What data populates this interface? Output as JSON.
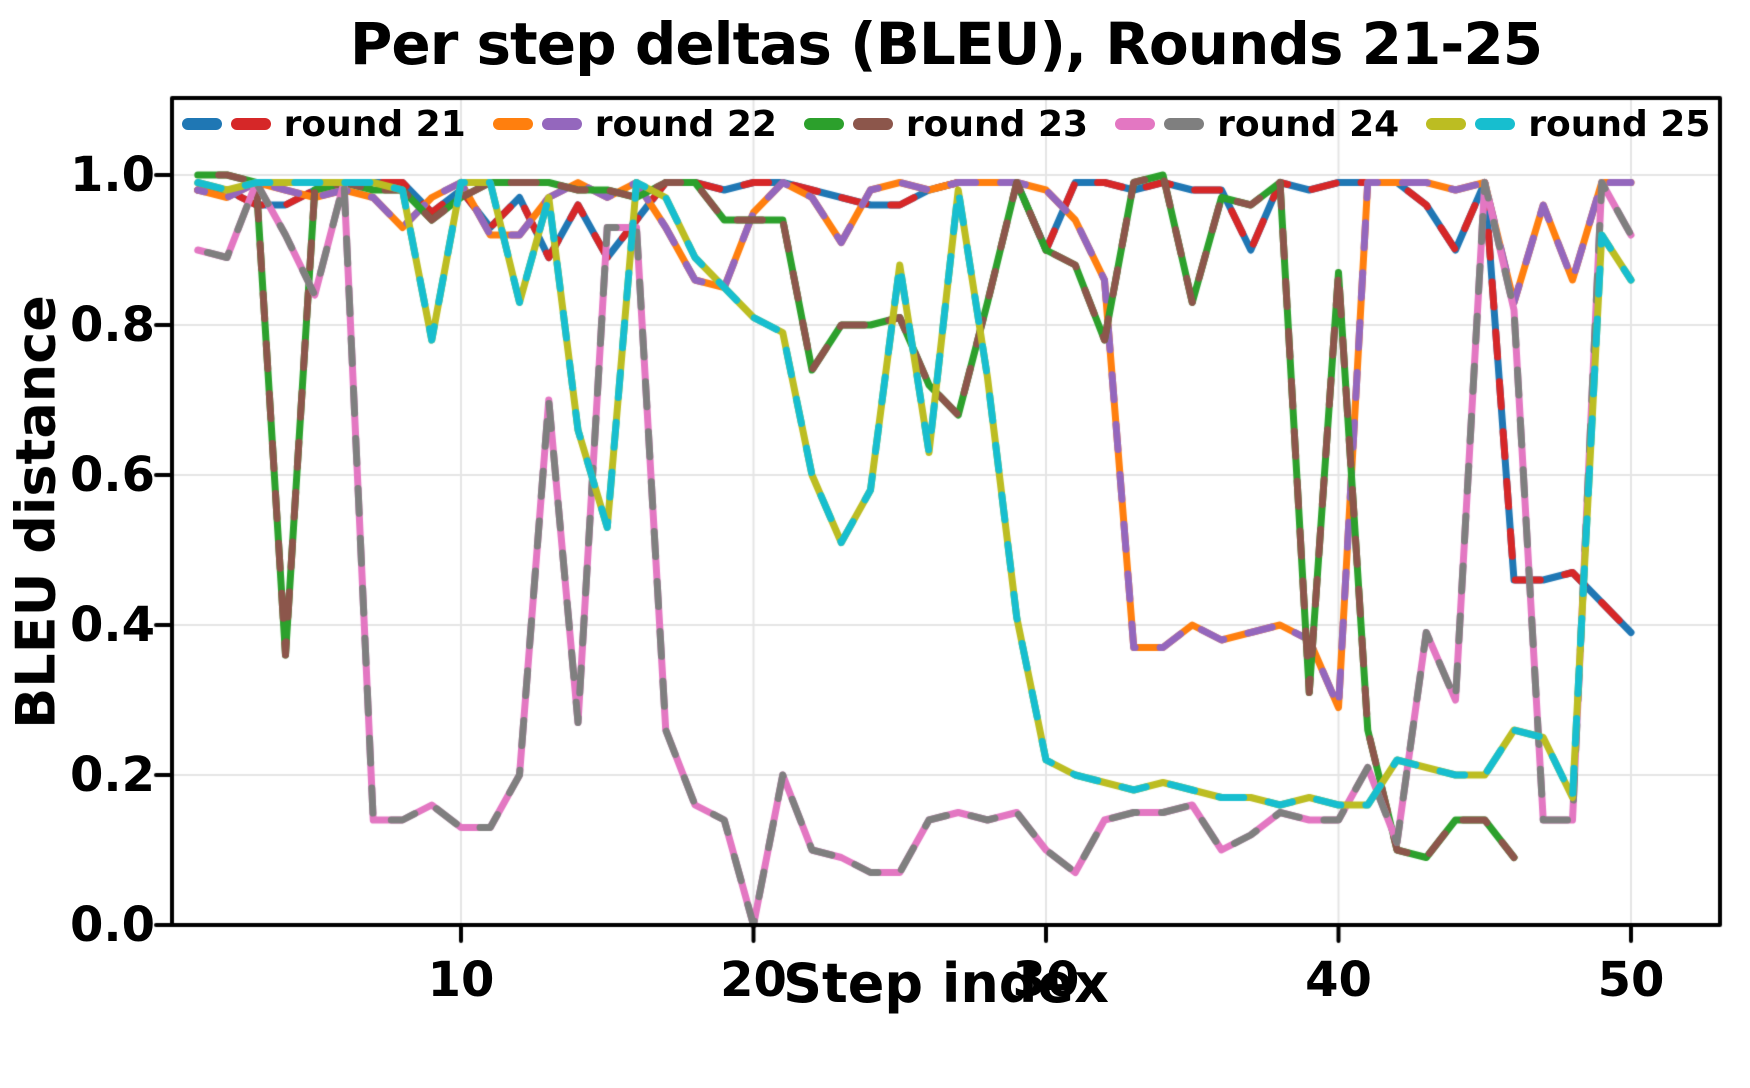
{
  "title": "Per step deltas (BLEU), Rounds 21-25",
  "chart_data": {
    "type": "line",
    "title": "Per step deltas (BLEU), Rounds 21-25",
    "xlabel": "Step index",
    "ylabel": "BLEU distance",
    "x_tick_values": [
      10,
      20,
      30,
      40,
      50
    ],
    "x_tick_labels": [
      "10",
      "20",
      "30",
      "40",
      "50"
    ],
    "y_tick_values": [
      0.0,
      0.2,
      0.4,
      0.6,
      0.8,
      1.0
    ],
    "y_tick_labels": [
      "0.0",
      "0.2",
      "0.4",
      "0.6",
      "0.8",
      "1.0"
    ],
    "x_start_step": 1,
    "ylim": [
      0.0,
      1.1
    ],
    "grid": true,
    "legend_position": "top-center-inside",
    "axis_color": "#000000",
    "grid_color": "#e5e5e5",
    "series": [
      {
        "name": "round 21",
        "colors": [
          "#1f77b4",
          "#d62728"
        ],
        "values": [
          0.98,
          0.98,
          0.96,
          0.96,
          0.98,
          0.99,
          0.99,
          0.99,
          0.95,
          0.98,
          0.93,
          0.97,
          0.89,
          0.96,
          0.89,
          0.94,
          0.99,
          0.99,
          0.98,
          0.99,
          0.99,
          0.98,
          0.97,
          0.96,
          0.96,
          0.98,
          0.99,
          0.99,
          0.99,
          0.9,
          0.99,
          0.99,
          0.98,
          0.99,
          0.98,
          0.98,
          0.9,
          0.99,
          0.98,
          0.99,
          0.99,
          0.99,
          0.96,
          0.9,
          0.99,
          0.46,
          0.46,
          0.47,
          0.43,
          0.39
        ]
      },
      {
        "name": "round 22",
        "colors": [
          "#ff7f0e",
          "#9467bd"
        ],
        "values": [
          0.98,
          0.97,
          0.99,
          0.98,
          0.97,
          0.98,
          0.97,
          0.93,
          0.97,
          0.99,
          0.92,
          0.92,
          0.97,
          0.99,
          0.97,
          0.99,
          0.93,
          0.86,
          0.85,
          0.95,
          0.99,
          0.97,
          0.91,
          0.98,
          0.99,
          0.98,
          0.99,
          0.99,
          0.99,
          0.98,
          0.94,
          0.86,
          0.37,
          0.37,
          0.4,
          0.38,
          0.39,
          0.4,
          0.38,
          0.29,
          0.99,
          0.99,
          0.99,
          0.98,
          0.99,
          0.83,
          0.96,
          0.86,
          0.99,
          0.99
        ]
      },
      {
        "name": "round 23",
        "colors": [
          "#2ca02c",
          "#8c564b"
        ],
        "values": [
          1.0,
          1.0,
          0.99,
          0.36,
          0.98,
          0.99,
          0.98,
          0.98,
          0.94,
          0.97,
          0.99,
          0.99,
          0.99,
          0.98,
          0.98,
          0.97,
          0.99,
          0.99,
          0.94,
          0.94,
          0.94,
          0.74,
          0.8,
          0.8,
          0.81,
          0.72,
          0.68,
          0.83,
          0.99,
          0.9,
          0.88,
          0.78,
          0.99,
          1.0,
          0.83,
          0.97,
          0.96,
          0.99,
          0.31,
          0.87,
          0.26,
          0.1,
          0.09,
          0.14,
          0.14,
          0.09
        ]
      },
      {
        "name": "round 24",
        "colors": [
          "#e377c2",
          "#7f7f7f"
        ],
        "values": [
          0.9,
          0.89,
          0.99,
          0.92,
          0.84,
          0.99,
          0.14,
          0.14,
          0.16,
          0.13,
          0.13,
          0.2,
          0.7,
          0.27,
          0.93,
          0.93,
          0.26,
          0.16,
          0.14,
          0.0,
          0.2,
          0.1,
          0.09,
          0.07,
          0.07,
          0.14,
          0.15,
          0.14,
          0.15,
          0.1,
          0.07,
          0.14,
          0.15,
          0.15,
          0.16,
          0.1,
          0.12,
          0.15,
          0.14,
          0.14,
          0.21,
          0.11,
          0.39,
          0.3,
          0.99,
          0.82,
          0.14,
          0.14,
          0.99,
          0.92
        ]
      },
      {
        "name": "round 25",
        "colors": [
          "#bcbd22",
          "#17becf"
        ],
        "values": [
          0.99,
          0.98,
          0.99,
          0.99,
          0.99,
          0.99,
          0.99,
          0.98,
          0.78,
          0.99,
          0.99,
          0.83,
          0.97,
          0.66,
          0.53,
          0.99,
          0.97,
          0.89,
          0.85,
          0.81,
          0.79,
          0.6,
          0.51,
          0.58,
          0.88,
          0.63,
          0.98,
          0.73,
          0.41,
          0.22,
          0.2,
          0.19,
          0.18,
          0.19,
          0.18,
          0.17,
          0.17,
          0.16,
          0.17,
          0.16,
          0.16,
          0.22,
          0.21,
          0.2,
          0.2,
          0.26,
          0.25,
          0.17,
          0.92,
          0.86
        ]
      }
    ]
  }
}
